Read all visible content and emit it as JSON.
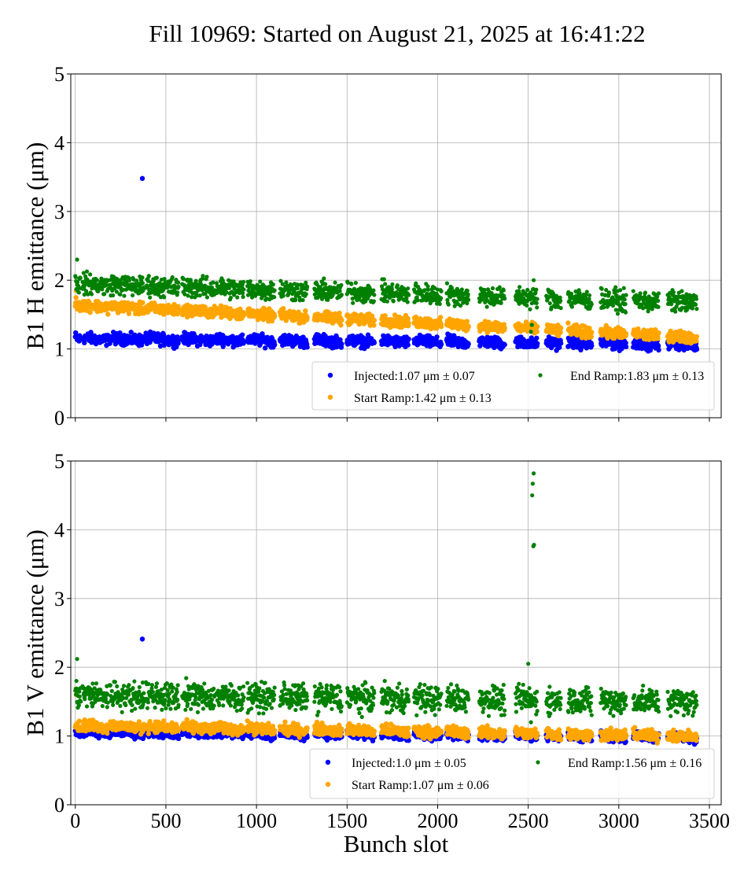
{
  "title": "Fill 10969: Started on August 21, 2025 at 16:41:22",
  "chart_data": [
    {
      "type": "scatter",
      "ylabel": "B1 H emittance (μm)",
      "xlabel": "",
      "xlim": [
        -25,
        3565
      ],
      "ylim": [
        0,
        5
      ],
      "yticks": [
        "0",
        "1",
        "2",
        "3",
        "4",
        "5"
      ],
      "xticks": [
        0,
        500,
        1000,
        1500,
        2000,
        2500,
        3000,
        3500
      ],
      "grid": true,
      "legend_position": "lower-right",
      "trains": [
        [
          0,
          30
        ],
        [
          40,
          180
        ],
        [
          190,
          380
        ],
        [
          390,
          570
        ],
        [
          590,
          770
        ],
        [
          780,
          930
        ],
        [
          950,
          1100
        ],
        [
          1130,
          1280
        ],
        [
          1320,
          1470
        ],
        [
          1500,
          1650
        ],
        [
          1690,
          1840
        ],
        [
          1870,
          2020
        ],
        [
          2050,
          2170
        ],
        [
          2230,
          2370
        ],
        [
          2430,
          2550
        ],
        [
          2600,
          2680
        ],
        [
          2720,
          2850
        ],
        [
          2900,
          3040
        ],
        [
          3080,
          3220
        ],
        [
          3270,
          3430
        ]
      ],
      "series": [
        {
          "name": "Injected:1.07 μm ± 0.07",
          "color": "#0000ff",
          "mean_first_train": 1.15,
          "mean_last_train": 1.07,
          "std": 0.05,
          "outliers": [
            [
              370,
              3.48
            ]
          ]
        },
        {
          "name": "Start Ramp:1.42 μm ± 0.13",
          "color": "#ffa500",
          "mean_first_train": 1.65,
          "mean_last_train": 1.18,
          "std": 0.05,
          "outliers": [
            [
              5,
              1.85
            ]
          ]
        },
        {
          "name": "End Ramp:1.83 μm ± 0.13",
          "color": "#008000",
          "mean_first_train": 1.95,
          "mean_last_train": 1.68,
          "std": 0.09,
          "outliers": [
            [
              10,
              2.3
            ],
            [
              2515,
              1.25
            ],
            [
              2520,
              1.35
            ],
            [
              2530,
              2.0
            ]
          ]
        }
      ]
    },
    {
      "type": "scatter",
      "ylabel": "B1 V emittance (μm)",
      "xlabel": "Bunch slot",
      "xlim": [
        -25,
        3565
      ],
      "ylim": [
        0,
        5
      ],
      "yticks": [
        "0",
        "1",
        "2",
        "3",
        "4",
        "5"
      ],
      "xticks": [
        0,
        500,
        1000,
        1500,
        2000,
        2500,
        3000,
        3500
      ],
      "xticklabels": [
        "0",
        "500",
        "1000",
        "1500",
        "2000",
        "2500",
        "3000",
        "3500"
      ],
      "grid": true,
      "legend_position": "lower-right",
      "trains": [
        [
          0,
          30
        ],
        [
          40,
          180
        ],
        [
          190,
          380
        ],
        [
          390,
          570
        ],
        [
          590,
          770
        ],
        [
          780,
          930
        ],
        [
          950,
          1100
        ],
        [
          1130,
          1280
        ],
        [
          1320,
          1470
        ],
        [
          1500,
          1650
        ],
        [
          1690,
          1840
        ],
        [
          1870,
          2020
        ],
        [
          2050,
          2170
        ],
        [
          2230,
          2370
        ],
        [
          2430,
          2550
        ],
        [
          2600,
          2680
        ],
        [
          2720,
          2850
        ],
        [
          2900,
          3040
        ],
        [
          3080,
          3220
        ],
        [
          3270,
          3430
        ]
      ],
      "series": [
        {
          "name": "Injected:1.0 μm ± 0.05",
          "color": "#0000ff",
          "mean_first_train": 1.05,
          "mean_last_train": 0.98,
          "std": 0.04,
          "outliers": [
            [
              370,
              2.41
            ]
          ]
        },
        {
          "name": "Start Ramp:1.07 μm ± 0.06",
          "color": "#ffa500",
          "mean_first_train": 1.15,
          "mean_last_train": 1.0,
          "std": 0.05,
          "outliers": [
            [
              5,
              1.6
            ]
          ]
        },
        {
          "name": "End Ramp:1.56 μm ± 0.16",
          "color": "#008000",
          "mean_first_train": 1.6,
          "mean_last_train": 1.5,
          "std": 0.12,
          "outliers": [
            [
              10,
              2.12
            ],
            [
              2500,
              2.05
            ],
            [
              2530,
              4.82
            ],
            [
              2525,
              4.67
            ],
            [
              2522,
              4.5
            ],
            [
              2532,
              3.78
            ],
            [
              2528,
              3.76
            ],
            [
              2515,
              1.2
            ]
          ]
        }
      ]
    }
  ]
}
